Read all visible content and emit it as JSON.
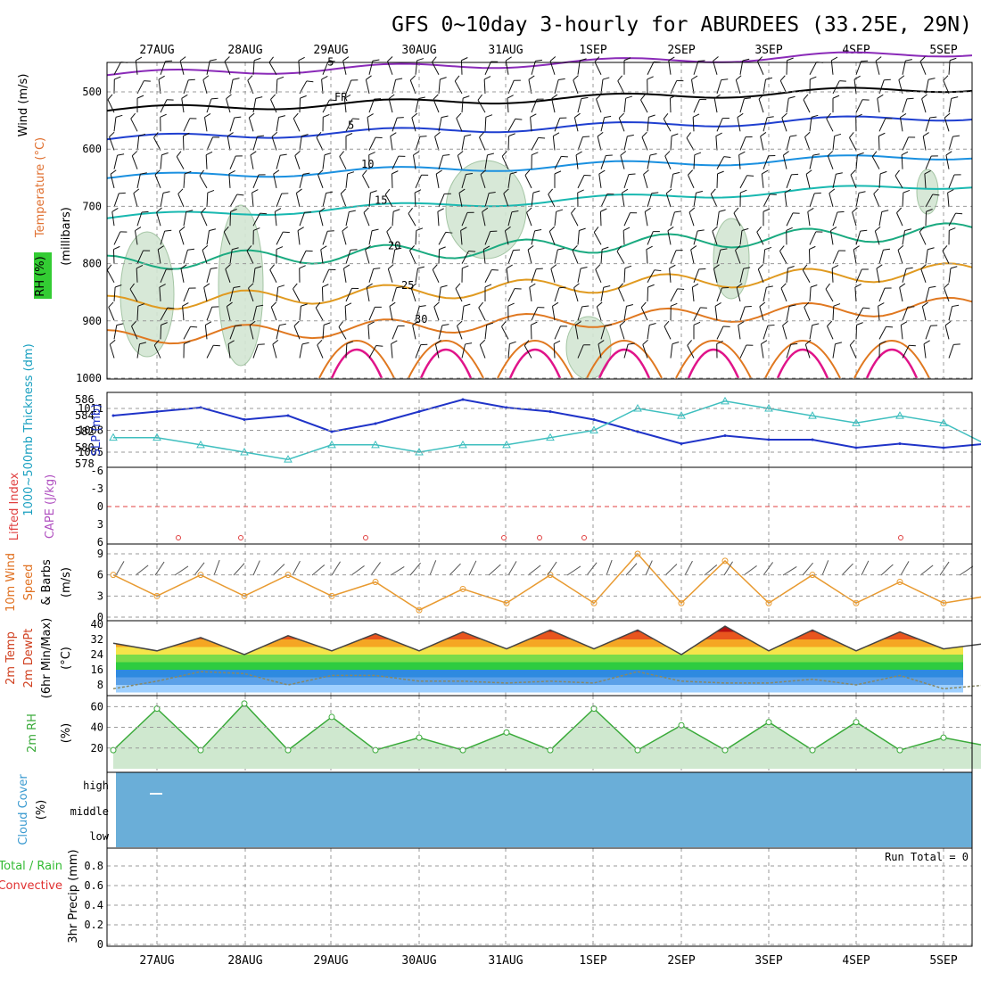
{
  "title": "GFS 0~10day 3-hourly for ABURDEES (33.25E, 29N)",
  "colors": {
    "grid": "#9a9a9a",
    "rh_shade": "#d3e6d3",
    "thickness_line": "#1f33c8",
    "slp_line": "#3fbfbf",
    "lifted_index": "#e04040",
    "cape": "#b050c0",
    "wind_speed": "#e89a30",
    "rh2m": "#3aaa3a",
    "cloud": "#6aaed8",
    "precip_label": "#33bb33",
    "convective_label": "#e03030"
  },
  "dates": [
    "27AUG",
    "28AUG",
    "29AUG",
    "30AUG",
    "31AUG",
    "1SEP",
    "2SEP",
    "3SEP",
    "4SEP",
    "5SEP"
  ],
  "panels": {
    "upper": {
      "labels": [
        "Wind (m/s)",
        "Temperature (°C)",
        "RH (%)",
        "(millibars)"
      ],
      "wind_label": "Wind (m/s)",
      "temp_label": "Temperature (°C)",
      "rh_label": "RH (%)",
      "pressure_label": "(millibars)",
      "ticks": [
        "500",
        "600",
        "700",
        "800",
        "900",
        "1000"
      ],
      "isotherms": [
        {
          "label": "-5",
          "color": "#8a2ab8"
        },
        {
          "label": "FR",
          "color": "#000000"
        },
        {
          "label": "5",
          "color": "#1f3fd0"
        },
        {
          "label": "10",
          "color": "#1a90e0"
        },
        {
          "label": "15",
          "color": "#18b8b0"
        },
        {
          "label": "20",
          "color": "#1aaa80"
        },
        {
          "label": "25",
          "color": "#e09a20"
        },
        {
          "label": "30",
          "color": "#e07820"
        }
      ]
    },
    "thickness_slp": {
      "thickness_label": "1000~500mb Thickness (dm)",
      "slp_label": "SLP (mb)",
      "thickness_ticks": [
        "586",
        "584",
        "582",
        "580",
        "578"
      ],
      "slp_ticks": [
        "1011",
        "1008",
        "1005"
      ]
    },
    "li_cape": {
      "li_label": "Lifted Index",
      "cape_label": "CAPE (J/kg)",
      "ticks": [
        "-6",
        "-3",
        "0",
        "3",
        "6"
      ]
    },
    "wind10": {
      "label_1": "10m Wind",
      "label_2": "Speed",
      "label_3": "& Barbs",
      "unit": "(m/s)",
      "ticks": [
        "9",
        "6",
        "3",
        "0"
      ]
    },
    "temp2m": {
      "label_1": "2m Temp",
      "label_2": "2m DewPt",
      "label_3": "(6hr Min/Max)",
      "unit": "(°C)",
      "ticks": [
        "40",
        "32",
        "24",
        "16",
        "8"
      ]
    },
    "rh2m": {
      "label": "2m RH",
      "unit": "(%)",
      "ticks": [
        "60",
        "40",
        "20"
      ]
    },
    "cloud": {
      "label": "Cloud Cover",
      "unit": "(%)",
      "levels": [
        "high",
        "middle",
        "low"
      ]
    },
    "precip": {
      "label_1": "Total / Rain",
      "label_2": "Convective",
      "label_3": "3hr Precip (mm)",
      "run_total": "Run Total = 0",
      "ticks": [
        "0.8",
        "0.6",
        "0.4",
        "0.2",
        "0"
      ]
    }
  },
  "chart_data": [
    {
      "type": "line",
      "title": "1000~500mb Thickness (dm) / SLP (mb)",
      "x": [
        "26AUG 12Z",
        "27AUG 00Z",
        "27AUG 12Z",
        "28AUG 00Z",
        "28AUG 12Z",
        "29AUG 00Z",
        "29AUG 12Z",
        "30AUG 00Z",
        "30AUG 12Z",
        "31AUG 00Z",
        "31AUG 12Z",
        "1SEP 00Z",
        "1SEP 12Z",
        "2SEP 00Z",
        "2SEP 12Z",
        "3SEP 00Z",
        "3SEP 12Z",
        "4SEP 00Z",
        "4SEP 12Z",
        "5SEP 00Z",
        "5SEP 12Z"
      ],
      "series": [
        {
          "name": "Thickness (dm)",
          "values": [
            584,
            584.5,
            585,
            583.5,
            584,
            582,
            583,
            584.5,
            586,
            585,
            584.5,
            583.5,
            582,
            580.5,
            581.5,
            581,
            581,
            580,
            580.5,
            580,
            580.5
          ]
        },
        {
          "name": "SLP (mb)",
          "values": [
            1007,
            1007,
            1006,
            1005,
            1004,
            1006,
            1006,
            1005,
            1006,
            1006,
            1007,
            1008,
            1011,
            1010,
            1012,
            1011,
            1010,
            1009,
            1010,
            1009,
            1006
          ]
        }
      ]
    },
    {
      "type": "line",
      "title": "10m Wind Speed (m/s)",
      "x": [
        "26AUG 12Z",
        "27AUG 00Z",
        "27AUG 12Z",
        "28AUG 00Z",
        "28AUG 12Z",
        "29AUG 00Z",
        "29AUG 12Z",
        "30AUG 00Z",
        "30AUG 12Z",
        "31AUG 00Z",
        "31AUG 12Z",
        "1SEP 00Z",
        "1SEP 12Z",
        "2SEP 00Z",
        "2SEP 12Z",
        "3SEP 00Z",
        "3SEP 12Z",
        "4SEP 00Z",
        "4SEP 12Z",
        "5SEP 00Z",
        "5SEP 12Z"
      ],
      "series": [
        {
          "name": "10m Wind Speed",
          "values": [
            6,
            3,
            6,
            3,
            6,
            3,
            5,
            1,
            4,
            2,
            6,
            2,
            9,
            2,
            8,
            2,
            6,
            2,
            5,
            2,
            3
          ]
        }
      ]
    },
    {
      "type": "area",
      "title": "2m Temp / 2m DewPt (°C)",
      "x": [
        "26AUG 12Z",
        "27AUG 00Z",
        "27AUG 12Z",
        "28AUG 00Z",
        "28AUG 12Z",
        "29AUG 00Z",
        "29AUG 12Z",
        "30AUG 00Z",
        "30AUG 12Z",
        "31AUG 00Z",
        "31AUG 12Z",
        "1SEP 00Z",
        "1SEP 12Z",
        "2SEP 00Z",
        "2SEP 12Z",
        "3SEP 00Z",
        "3SEP 12Z",
        "4SEP 00Z",
        "4SEP 12Z",
        "5SEP 00Z",
        "5SEP 12Z"
      ],
      "series": [
        {
          "name": "2m Temp",
          "values": [
            30,
            26,
            33,
            24,
            34,
            26,
            35,
            26,
            36,
            27,
            37,
            27,
            37,
            24,
            39,
            26,
            37,
            26,
            36,
            27,
            30
          ]
        },
        {
          "name": "2m DewPt",
          "values": [
            6,
            10,
            15,
            14,
            8,
            13,
            13,
            10,
            10,
            9,
            10,
            9,
            15,
            10,
            9,
            9,
            11,
            8,
            13,
            6,
            8
          ]
        }
      ]
    },
    {
      "type": "area",
      "title": "2m RH (%)",
      "x": [
        "26AUG 12Z",
        "27AUG 00Z",
        "27AUG 12Z",
        "28AUG 00Z",
        "28AUG 12Z",
        "29AUG 00Z",
        "29AUG 12Z",
        "30AUG 00Z",
        "30AUG 12Z",
        "31AUG 00Z",
        "31AUG 12Z",
        "1SEP 00Z",
        "1SEP 12Z",
        "2SEP 00Z",
        "2SEP 12Z",
        "3SEP 00Z",
        "3SEP 12Z",
        "4SEP 00Z",
        "4SEP 12Z",
        "5SEP 00Z",
        "5SEP 12Z"
      ],
      "series": [
        {
          "name": "2m RH",
          "values": [
            18,
            58,
            18,
            63,
            18,
            50,
            18,
            30,
            18,
            35,
            18,
            58,
            18,
            42,
            18,
            45,
            18,
            45,
            18,
            30,
            22
          ]
        }
      ]
    },
    {
      "type": "bar",
      "title": "3hr Precip (mm)",
      "categories": [
        "27AUG",
        "28AUG",
        "29AUG",
        "30AUG",
        "31AUG",
        "1SEP",
        "2SEP",
        "3SEP",
        "4SEP",
        "5SEP"
      ],
      "values": [
        0,
        0,
        0,
        0,
        0,
        0,
        0,
        0,
        0,
        0
      ],
      "ylim": [
        0,
        1
      ]
    }
  ]
}
